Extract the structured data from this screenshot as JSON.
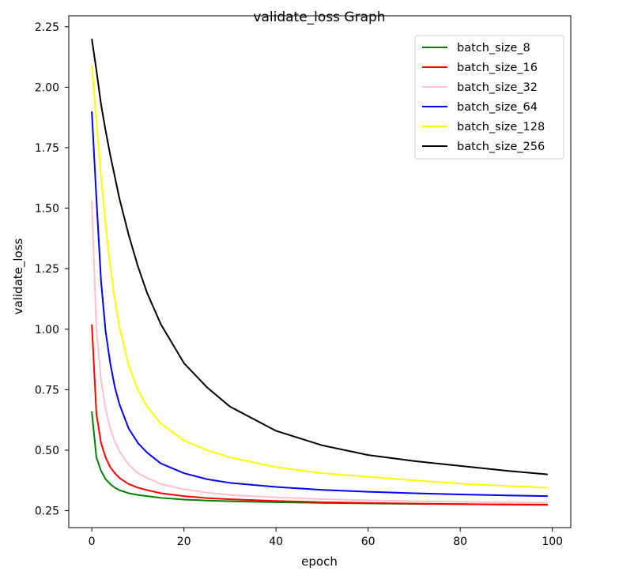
{
  "chart_data": {
    "type": "line",
    "title": "validate_loss Graph",
    "xlabel": "epoch",
    "ylabel": "validate_loss",
    "xlim": [
      -5,
      104
    ],
    "ylim": [
      0.18,
      2.295
    ],
    "xticks": [
      0,
      20,
      40,
      60,
      80,
      100
    ],
    "xtick_labels": [
      "0",
      "20",
      "40",
      "60",
      "80",
      "100"
    ],
    "yticks": [
      0.25,
      0.5,
      0.75,
      1.0,
      1.25,
      1.5,
      1.75,
      2.0,
      2.25
    ],
    "ytick_labels": [
      "0.25",
      "0.50",
      "0.75",
      "1.00",
      "1.25",
      "1.50",
      "1.75",
      "2.00",
      "2.25"
    ],
    "grid": false,
    "legend_position": "top-right",
    "series": [
      {
        "name": "batch_size_8",
        "color": "#008000",
        "x": [
          0,
          1,
          2,
          3,
          4,
          5,
          6,
          8,
          10,
          12,
          15,
          20,
          25,
          30,
          40,
          50,
          60,
          70,
          80,
          90,
          99
        ],
        "y": [
          0.66,
          0.47,
          0.415,
          0.38,
          0.36,
          0.345,
          0.335,
          0.322,
          0.315,
          0.31,
          0.303,
          0.296,
          0.292,
          0.289,
          0.285,
          0.282,
          0.28,
          0.278,
          0.277,
          0.276,
          0.275
        ]
      },
      {
        "name": "batch_size_16",
        "color": "#ff0000",
        "x": [
          0,
          1,
          2,
          3,
          4,
          5,
          6,
          8,
          10,
          12,
          15,
          20,
          25,
          30,
          40,
          50,
          60,
          70,
          80,
          90,
          99
        ],
        "y": [
          1.02,
          0.65,
          0.53,
          0.47,
          0.43,
          0.405,
          0.385,
          0.36,
          0.345,
          0.335,
          0.322,
          0.31,
          0.302,
          0.297,
          0.29,
          0.285,
          0.282,
          0.279,
          0.277,
          0.275,
          0.274
        ]
      },
      {
        "name": "batch_size_32",
        "color": "#ffc0cb",
        "x": [
          0,
          1,
          2,
          3,
          4,
          5,
          6,
          8,
          10,
          12,
          15,
          20,
          25,
          30,
          40,
          50,
          60,
          70,
          80,
          90,
          99
        ],
        "y": [
          1.53,
          1.0,
          0.79,
          0.67,
          0.59,
          0.535,
          0.495,
          0.44,
          0.405,
          0.385,
          0.36,
          0.338,
          0.325,
          0.315,
          0.305,
          0.298,
          0.293,
          0.289,
          0.286,
          0.284,
          0.283
        ]
      },
      {
        "name": "batch_size_64",
        "color": "#0000ff",
        "x": [
          0,
          1,
          2,
          3,
          4,
          5,
          6,
          8,
          10,
          12,
          15,
          20,
          25,
          30,
          40,
          50,
          60,
          70,
          80,
          90,
          99
        ],
        "y": [
          1.9,
          1.54,
          1.2,
          0.99,
          0.86,
          0.76,
          0.69,
          0.59,
          0.53,
          0.49,
          0.445,
          0.405,
          0.38,
          0.365,
          0.348,
          0.336,
          0.328,
          0.322,
          0.317,
          0.313,
          0.31
        ]
      },
      {
        "name": "batch_size_128",
        "color": "#ffff00",
        "x": [
          0,
          1,
          2,
          3,
          4,
          5,
          6,
          8,
          10,
          12,
          15,
          20,
          25,
          30,
          40,
          50,
          60,
          70,
          80,
          90,
          99
        ],
        "y": [
          2.09,
          1.86,
          1.63,
          1.43,
          1.26,
          1.12,
          1.01,
          0.85,
          0.75,
          0.68,
          0.61,
          0.54,
          0.5,
          0.47,
          0.43,
          0.405,
          0.39,
          0.375,
          0.362,
          0.352,
          0.345
        ]
      },
      {
        "name": "batch_size_256",
        "color": "#000000",
        "x": [
          0,
          1,
          2,
          3,
          4,
          5,
          6,
          8,
          10,
          12,
          15,
          20,
          25,
          30,
          40,
          50,
          60,
          70,
          80,
          90,
          99
        ],
        "y": [
          2.2,
          2.07,
          1.93,
          1.82,
          1.72,
          1.63,
          1.54,
          1.39,
          1.26,
          1.15,
          1.02,
          0.86,
          0.76,
          0.68,
          0.58,
          0.52,
          0.48,
          0.455,
          0.435,
          0.415,
          0.4
        ]
      }
    ]
  }
}
